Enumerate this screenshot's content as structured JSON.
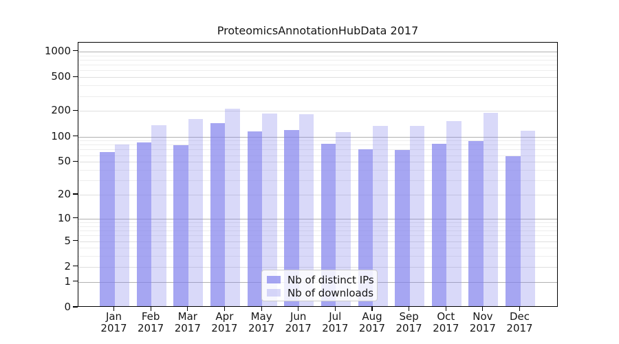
{
  "title": "ProteomicsAnnotationHubData 2017",
  "chart_data": {
    "type": "bar",
    "title": "ProteomicsAnnotationHubData 2017",
    "categories": [
      "Jan 2017",
      "Feb 2017",
      "Mar 2017",
      "Apr 2017",
      "May 2017",
      "Jun 2017",
      "Jul 2017",
      "Aug 2017",
      "Sep 2017",
      "Oct 2017",
      "Nov 2017",
      "Dec 2017"
    ],
    "series": [
      {
        "name": "Nb of distinct IPs",
        "values": [
          63,
          82,
          76,
          140,
          110,
          116,
          79,
          68,
          67,
          79,
          86,
          56
        ]
      },
      {
        "name": "Nb of downloads",
        "values": [
          78,
          131,
          155,
          207,
          181,
          176,
          109,
          128,
          129,
          148,
          183,
          113
        ]
      }
    ],
    "yscale": "log-like (position proportional to log10(value+1), 0 at baseline)",
    "yticks": [
      0,
      1,
      2,
      5,
      10,
      20,
      50,
      100,
      200,
      500,
      1000
    ],
    "ylim": [
      0,
      1270
    ],
    "grid": true,
    "legend_position": "lower center inside plot"
  },
  "x_axis": {
    "months": [
      "Jan",
      "Feb",
      "Mar",
      "Apr",
      "May",
      "Jun",
      "Jul",
      "Aug",
      "Sep",
      "Oct",
      "Nov",
      "Dec"
    ],
    "year": "2017"
  },
  "y_axis": {
    "ticks": [
      0,
      1,
      2,
      5,
      10,
      20,
      50,
      100,
      200,
      500,
      1000
    ],
    "minor_gridlines": [
      3,
      4,
      6,
      7,
      8,
      9,
      30,
      40,
      60,
      70,
      80,
      90,
      300,
      400,
      600,
      700,
      800,
      900
    ]
  },
  "colors": {
    "bar_base": "#8080ec",
    "ips_bar": "rgba(128,128,236,0.70)",
    "downloads_bar": "rgba(128,128,236,0.30)",
    "grid_decade": "#b0b0b0",
    "grid_major": "#dedede",
    "grid_minor": "#ededed",
    "axis": "#000000",
    "background": "#ffffff"
  }
}
